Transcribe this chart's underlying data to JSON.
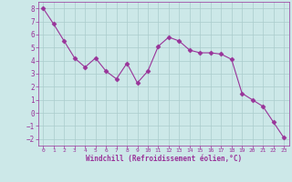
{
  "x": [
    0,
    1,
    2,
    3,
    4,
    5,
    6,
    7,
    8,
    9,
    10,
    11,
    12,
    13,
    14,
    15,
    16,
    17,
    18,
    19,
    20,
    21,
    22,
    23
  ],
  "y": [
    8.0,
    6.8,
    5.5,
    4.2,
    3.5,
    4.2,
    3.2,
    2.6,
    3.8,
    2.3,
    3.2,
    5.1,
    5.8,
    5.5,
    4.8,
    4.6,
    4.6,
    4.5,
    4.1,
    1.5,
    1.0,
    0.5,
    -0.7,
    -1.9
  ],
  "line_color": "#993399",
  "marker": "D",
  "marker_size": 2.5,
  "bg_color": "#cce8e8",
  "grid_color": "#aacccc",
  "xlabel": "Windchill (Refroidissement éolien,°C)",
  "xlabel_color": "#993399",
  "tick_color": "#993399",
  "ylim": [
    -2.5,
    8.5
  ],
  "xlim": [
    -0.5,
    23.5
  ],
  "yticks": [
    -2,
    -1,
    0,
    1,
    2,
    3,
    4,
    5,
    6,
    7,
    8
  ],
  "xticks": [
    0,
    1,
    2,
    3,
    4,
    5,
    6,
    7,
    8,
    9,
    10,
    11,
    12,
    13,
    14,
    15,
    16,
    17,
    18,
    19,
    20,
    21,
    22,
    23
  ]
}
